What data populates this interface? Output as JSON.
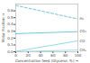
{
  "chart_data": {
    "type": "line",
    "xlabel": "Concentration feed (Glycerol, %)",
    "ylabel": "Molar fraction",
    "x": [
      0,
      100
    ],
    "series": [
      {
        "name": "H₂",
        "color": "#66ccdd",
        "line_style": "dashed",
        "values": [
          0.68,
          0.48
        ]
      },
      {
        "name": "CO₂",
        "color": "#66ccdd",
        "line_style": "solid",
        "values": [
          0.265,
          0.295
        ]
      },
      {
        "name": "CO",
        "color": "#88ddee",
        "line_style": "solid",
        "values": [
          0.005,
          0.16
        ]
      },
      {
        "name": "CH₄",
        "color": "#99ddee",
        "line_style": "solid",
        "values": [
          0.002,
          0.025
        ]
      }
    ],
    "xlim": [
      0,
      100
    ],
    "ylim": [
      0,
      0.7
    ],
    "xticks": [
      0,
      20,
      40,
      60,
      80,
      100
    ],
    "yticks": [
      {
        "value": 0.0,
        "label": "0.0"
      },
      0.1,
      0.2,
      0.3,
      0.4,
      0.5,
      0.6
    ],
    "grid": false
  }
}
